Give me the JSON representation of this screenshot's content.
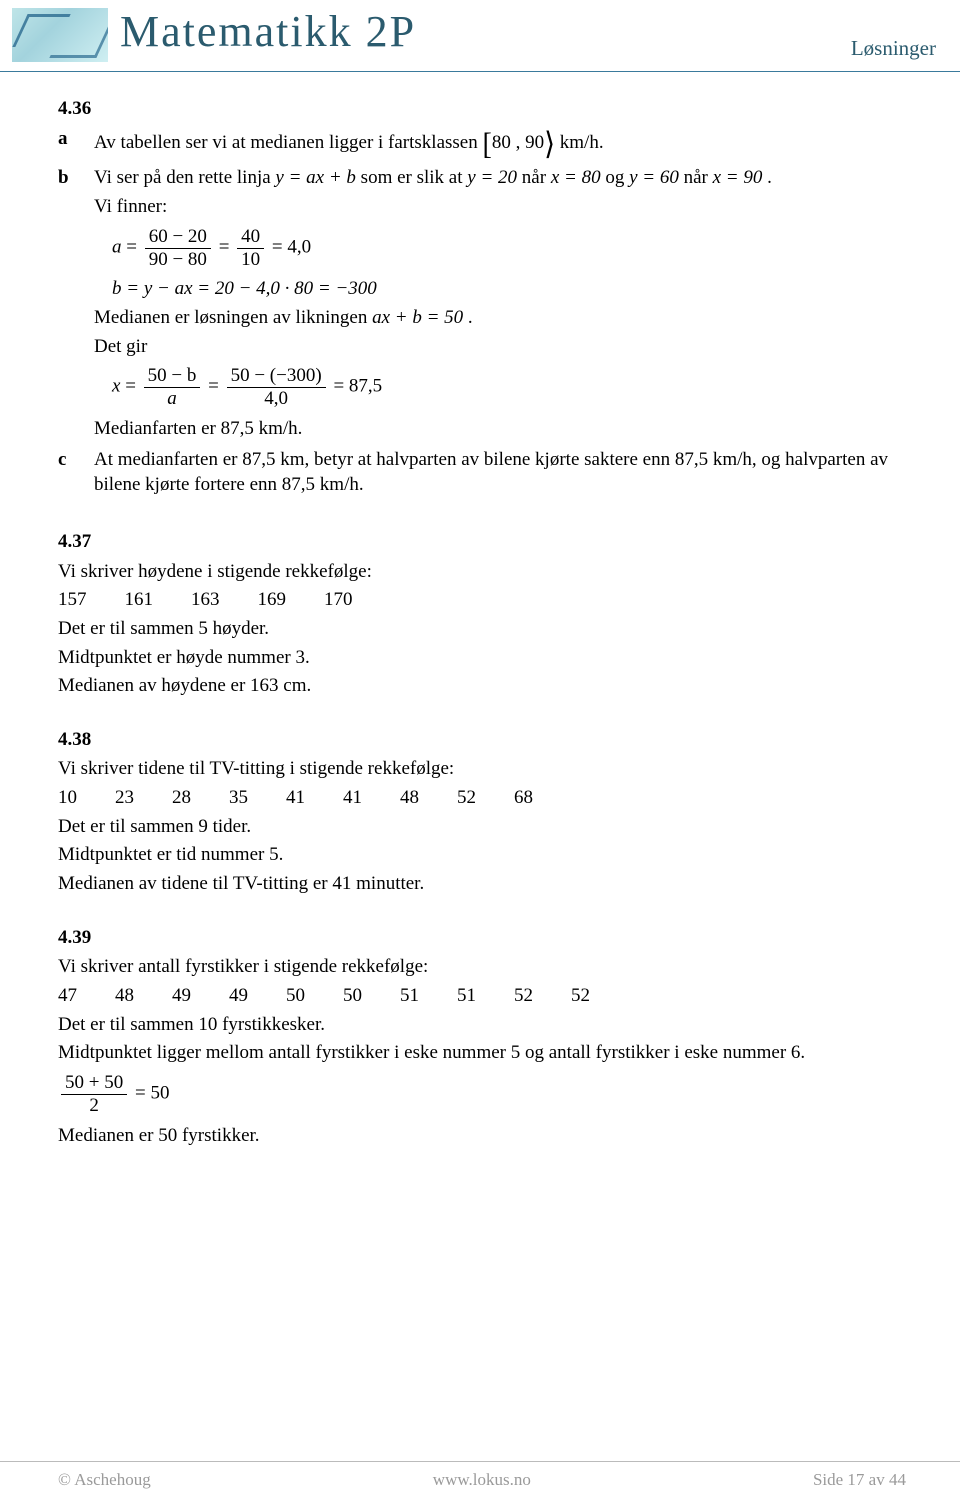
{
  "header": {
    "brand": "Matematikk 2P",
    "right": "Løsninger"
  },
  "s436": {
    "num": "4.36",
    "a": {
      "text_before": "Av tabellen ser vi at medianen ligger i fartsklassen ",
      "interval": "[80 , 90⟩",
      "text_after": " km/h."
    },
    "b": {
      "l1_pre": "Vi ser på den rette linja ",
      "l1_eq1": "y = ax + b",
      "l1_mid1": " som er slik at ",
      "l1_eq2": "y = 20",
      "l1_mid2": " når ",
      "l1_eq3": "x = 80",
      "l1_mid3": " og ",
      "l1_eq4": "y = 60",
      "l1_mid4": " når ",
      "l1_eq5": "x = 90",
      "l1_end": ".",
      "l2": "Vi finner:",
      "a_frac1_num": "60 − 20",
      "a_frac1_den": "90 − 80",
      "a_frac2_num": "40",
      "a_frac2_den": "10",
      "a_result": "4,0",
      "b_line": "b = y − ax = 20 − 4,0 · 80 = −300",
      "med_line_pre": "Medianen er løsningen av likningen ",
      "med_line_eq": "ax + b = 50",
      "med_line_post": ".",
      "detgir": "Det gir",
      "x_frac1_num": "50 − b",
      "x_frac1_den": "a",
      "x_frac2_num": "50 − (−300)",
      "x_frac2_den": "4,0",
      "x_result": "87,5",
      "mf": "Medianfarten er 87,5 km/h."
    },
    "c": {
      "text": "At medianfarten er 87,5 km, betyr at halvparten av bilene kjørte saktere enn 87,5 km/h, og halvparten av bilene kjørte fortere enn 87,5 km/h."
    }
  },
  "s437": {
    "num": "4.37",
    "l1": "Vi skriver høydene i stigende rekkefølge:",
    "vals": [
      "157",
      "161",
      "163",
      "169",
      "170"
    ],
    "l2": "Det er til sammen 5 høyder.",
    "l3": "Midtpunktet er høyde nummer 3.",
    "l4": "Medianen av høydene er 163 cm."
  },
  "s438": {
    "num": "4.38",
    "l1": "Vi skriver tidene til TV-titting i stigende rekkefølge:",
    "vals": [
      "10",
      "23",
      "28",
      "35",
      "41",
      "41",
      "48",
      "52",
      "68"
    ],
    "l2": "Det er til sammen 9 tider.",
    "l3": "Midtpunktet er tid nummer 5.",
    "l4": "Medianen av tidene til TV-titting er 41 minutter."
  },
  "s439": {
    "num": "4.39",
    "l1": "Vi skriver antall fyrstikker i stigende rekkefølge:",
    "vals": [
      "47",
      "48",
      "49",
      "49",
      "50",
      "50",
      "51",
      "51",
      "52",
      "52"
    ],
    "l2": "Det er til sammen 10 fyrstikkesker.",
    "l3": "Midtpunktet ligger mellom antall fyrstikker i eske nummer 5 og antall fyrstikker i eske nummer 6.",
    "frac_num": "50 + 50",
    "frac_den": "2",
    "frac_res": "50",
    "l4": "Medianen er 50 fyrstikker."
  },
  "footer": {
    "left": "© Aschehoug",
    "mid": "www.lokus.no",
    "right": "Side 17 av 44"
  }
}
